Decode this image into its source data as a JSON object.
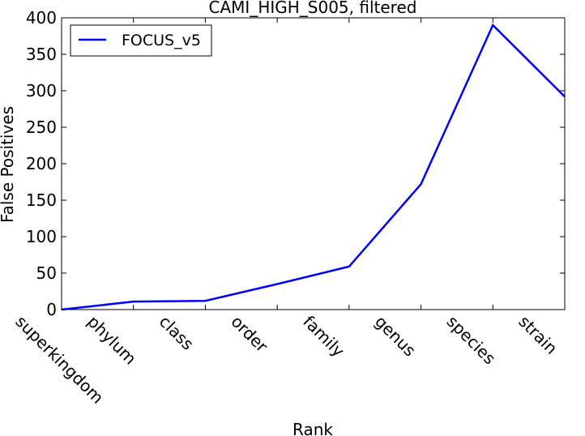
{
  "chart_data": {
    "type": "line",
    "title": "CAMI_HIGH_S005, filtered",
    "xlabel": "Rank",
    "ylabel": "False Positives",
    "categories": [
      "superkingdom",
      "phylum",
      "class",
      "order",
      "family",
      "genus",
      "species",
      "strain"
    ],
    "series": [
      {
        "name": "FOCUS_v5",
        "color": "#0000ff",
        "values": [
          0,
          11,
          12,
          35,
          59,
          172,
          390,
          292
        ]
      }
    ],
    "ylim": [
      0,
      400
    ],
    "yticks": [
      0,
      50,
      100,
      150,
      200,
      250,
      300,
      350,
      400
    ],
    "grid": false,
    "legend_position": "top-left"
  }
}
